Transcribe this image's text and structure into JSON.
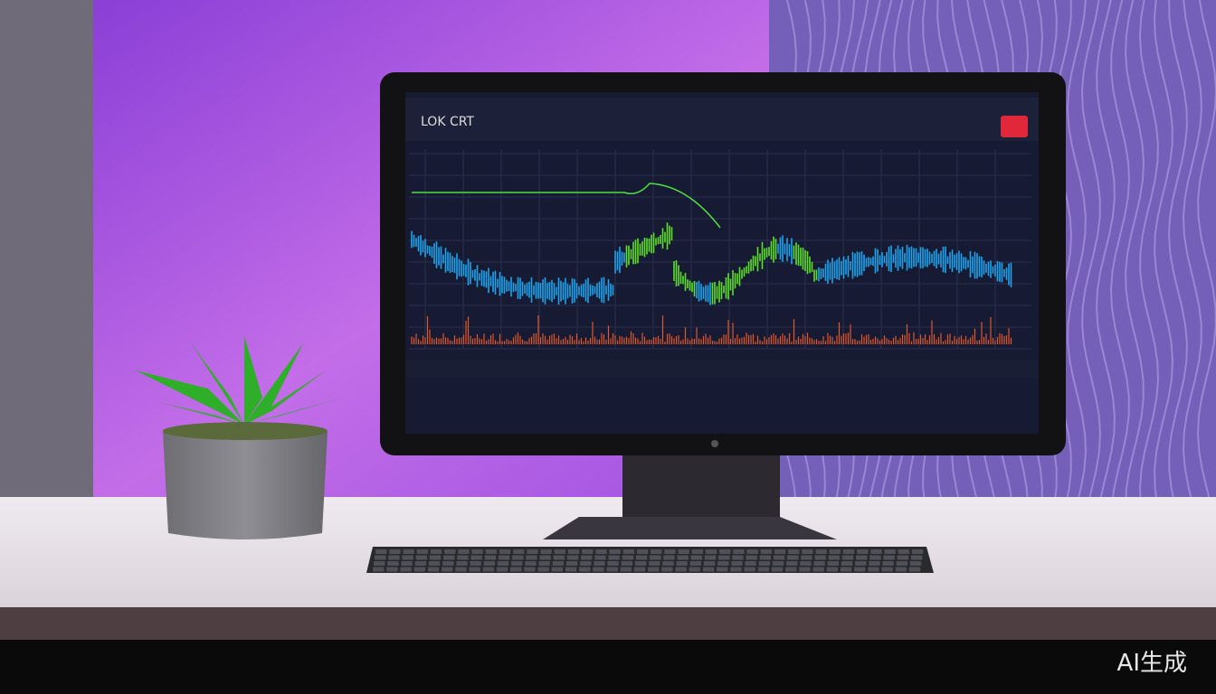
{
  "screen": {
    "title": "LOK CRT"
  },
  "watermark": "AI生成"
}
